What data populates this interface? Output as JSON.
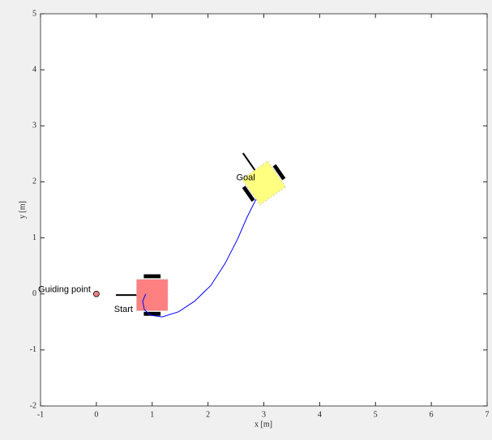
{
  "chart_data": {
    "type": "trajectory",
    "xlabel": "x [m]",
    "ylabel": "y [m]",
    "xlim": [
      -1,
      7
    ],
    "ylim": [
      -2,
      5
    ],
    "xticks": [
      -1,
      0,
      1,
      2,
      3,
      4,
      5,
      6,
      7
    ],
    "yticks": [
      -2,
      -1,
      0,
      1,
      2,
      3,
      4,
      5
    ],
    "series": [
      {
        "color": "#0000ff",
        "x": [
          0.885,
          0.83,
          0.86,
          0.97,
          1.18,
          1.47,
          1.76,
          2.05,
          2.31,
          2.53,
          2.7,
          2.86
        ],
        "y": [
          0.0,
          -0.13,
          -0.28,
          -0.38,
          -0.41,
          -0.32,
          -0.13,
          0.15,
          0.55,
          0.98,
          1.37,
          1.69
        ]
      }
    ],
    "guiding_point": {
      "label": "Guiding point",
      "x": 0,
      "y": 0,
      "color": "#f08080"
    },
    "robots": [
      {
        "label": "Start",
        "x": 1.0,
        "y": -0.02,
        "heading": 180,
        "color": "#ff8080"
      },
      {
        "label": "Goal",
        "x": 3.0,
        "y": 1.98,
        "heading": 125,
        "color": "#ffff80"
      }
    ]
  }
}
